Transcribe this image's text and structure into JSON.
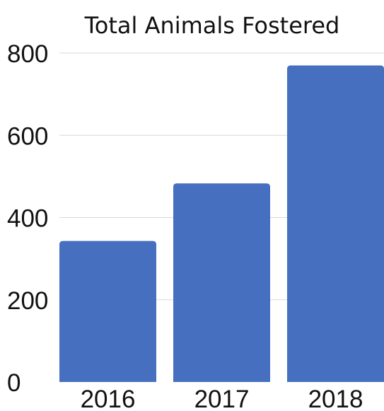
{
  "chart_data": {
    "type": "bar",
    "title": "Total Animals Fostered",
    "categories": [
      "2016",
      "2017",
      "2018"
    ],
    "values": [
      343,
      483,
      770
    ],
    "ylim": [
      0,
      800
    ],
    "yticks": [
      0,
      200,
      400,
      600,
      800
    ],
    "grid": true,
    "bar_color": "#4670bf"
  }
}
